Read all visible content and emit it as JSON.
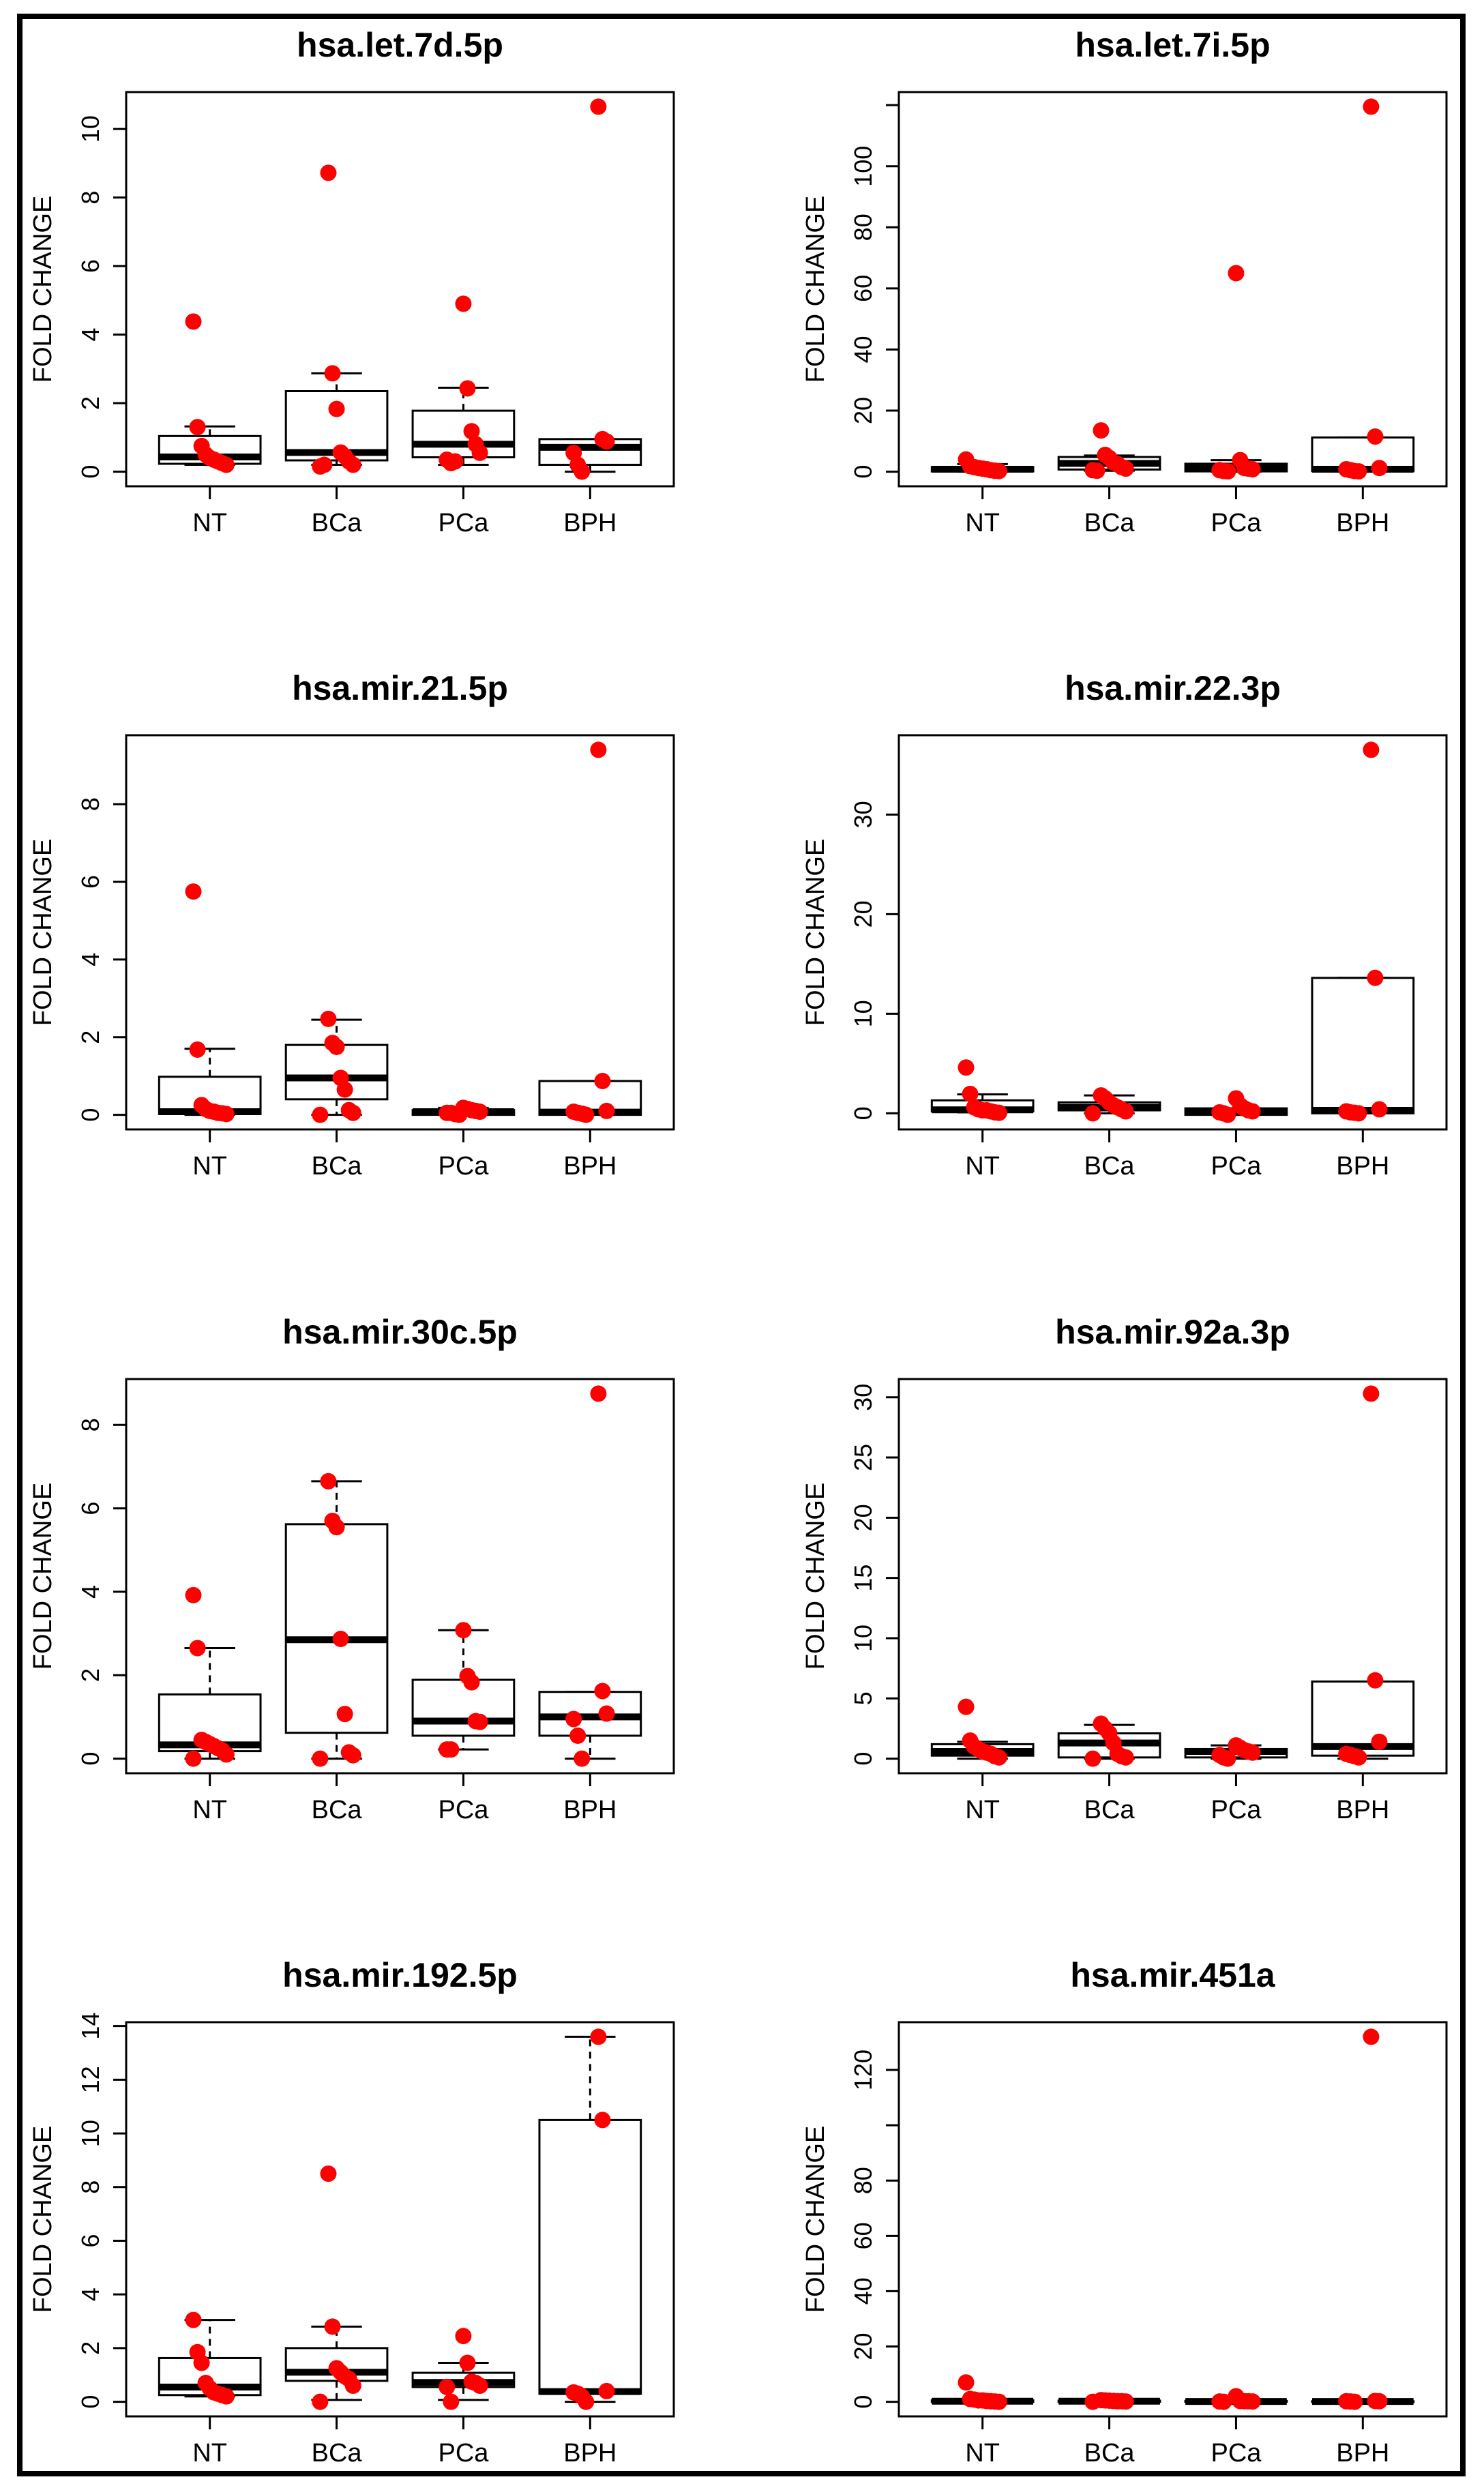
{
  "colors": {
    "points": "#ff0000",
    "lines": "#000000",
    "background": "#ffffff"
  },
  "chart_data": [
    {
      "type": "box",
      "title": "hsa.let.7d.5p",
      "ylabel": "FOLD CHANGE",
      "categories": [
        "NT",
        "BCa",
        "PCa",
        "BPH"
      ],
      "yticks": [
        0,
        2,
        4,
        6,
        8,
        10
      ],
      "ytick_labels": [
        "0",
        "2",
        "4",
        "6",
        "8",
        "10"
      ],
      "groups": [
        {
          "stats": [
            0.2,
            0.23,
            0.43,
            1.04,
            1.32
          ],
          "points": [
            4.38,
            1.3,
            0.75,
            0.5,
            0.4,
            0.35,
            0.3,
            0.25,
            0.2
          ]
        },
        {
          "stats": [
            0.2,
            0.33,
            0.56,
            2.35,
            2.87
          ],
          "points": [
            8.72,
            2.87,
            1.83,
            0.56,
            0.45,
            0.3,
            0.2,
            0.15,
            0.2
          ]
        },
        {
          "stats": [
            0.2,
            0.42,
            0.8,
            1.78,
            2.45
          ],
          "points": [
            4.9,
            2.43,
            1.18,
            0.8,
            0.55,
            0.35,
            0.25,
            0.3
          ]
        },
        {
          "stats": [
            0.0,
            0.2,
            0.71,
            0.95,
            0.95
          ],
          "points": [
            10.65,
            0.95,
            0.88,
            0.55,
            0.2,
            0.0
          ]
        }
      ]
    },
    {
      "type": "box",
      "title": "hsa.let.7i.5p",
      "ylabel": "FOLD CHANGE",
      "categories": [
        "NT",
        "BCa",
        "PCa",
        "BPH"
      ],
      "yticks": [
        0,
        20,
        40,
        60,
        80,
        100,
        120
      ],
      "ytick_labels": [
        "0",
        "20",
        "40",
        "60",
        "80",
        "100",
        ""
      ],
      "groups": [
        {
          "stats": [
            0.0,
            0.1,
            0.8,
            1.5,
            2.5
          ],
          "points": [
            4.0,
            1.8,
            1.5,
            1.2,
            1.0,
            0.8,
            0.5,
            0.3,
            0.2
          ]
        },
        {
          "stats": [
            0.3,
            0.7,
            2.7,
            4.8,
            5.3
          ],
          "points": [
            13.5,
            5.5,
            4.5,
            3.0,
            2.5,
            1.5,
            1.0,
            0.5,
            0.3
          ]
        },
        {
          "stats": [
            0.0,
            0.1,
            1.2,
            2.6,
            3.8
          ],
          "points": [
            65.0,
            3.8,
            1.2,
            1.0,
            0.8,
            0.5,
            0.2,
            0.1
          ]
        },
        {
          "stats": [
            0.0,
            0.2,
            0.8,
            11.2,
            11.2
          ],
          "points": [
            119.5,
            11.5,
            1.2,
            0.8,
            0.5,
            0.2,
            0.1
          ]
        }
      ]
    },
    {
      "type": "box",
      "title": "hsa.mir.21.5p",
      "ylabel": "FOLD CHANGE",
      "categories": [
        "NT",
        "BCa",
        "PCa",
        "BPH"
      ],
      "yticks": [
        0,
        2,
        4,
        6,
        8
      ],
      "ytick_labels": [
        "0",
        "2",
        "4",
        "6",
        "8"
      ],
      "groups": [
        {
          "stats": [
            0.0,
            0.02,
            0.08,
            0.98,
            1.7
          ],
          "points": [
            5.75,
            1.68,
            0.25,
            0.15,
            0.1,
            0.08,
            0.05,
            0.04,
            0.02
          ]
        },
        {
          "stats": [
            0.0,
            0.4,
            0.95,
            1.8,
            2.45
          ],
          "points": [
            2.47,
            1.85,
            1.75,
            0.95,
            0.65,
            0.12,
            0.05,
            0.0
          ]
        },
        {
          "stats": [
            0.0,
            0.0,
            0.08,
            0.12,
            0.18
          ],
          "points": [
            0.18,
            0.15,
            0.12,
            0.1,
            0.08,
            0.05,
            0.05,
            0.02,
            0.0
          ]
        },
        {
          "stats": [
            0.0,
            0.0,
            0.07,
            0.87,
            0.87
          ],
          "points": [
            9.4,
            0.87,
            0.1,
            0.08,
            0.05,
            0.03,
            0.0
          ]
        }
      ]
    },
    {
      "type": "box",
      "title": "hsa.mir.22.3p",
      "ylabel": "FOLD CHANGE",
      "categories": [
        "NT",
        "BCa",
        "PCa",
        "BPH"
      ],
      "yticks": [
        0,
        10,
        20,
        30
      ],
      "ytick_labels": [
        "0",
        "10",
        "20",
        "30"
      ],
      "groups": [
        {
          "stats": [
            0.1,
            0.2,
            0.35,
            1.3,
            1.9
          ],
          "points": [
            4.6,
            1.95,
            0.6,
            0.4,
            0.3,
            0.3,
            0.2,
            0.1,
            0.05
          ]
        },
        {
          "stats": [
            0.0,
            0.3,
            0.6,
            1.1,
            1.8
          ],
          "points": [
            1.8,
            1.5,
            1.1,
            0.8,
            0.6,
            0.4,
            0.2,
            0.0
          ]
        },
        {
          "stats": [
            -0.15,
            -0.15,
            0.2,
            0.5,
            0.5
          ],
          "points": [
            1.5,
            0.8,
            0.5,
            0.3,
            0.2,
            0.1,
            0.0,
            -0.15
          ]
        },
        {
          "stats": [
            0.0,
            0.0,
            0.3,
            13.6,
            13.6
          ],
          "points": [
            36.5,
            13.6,
            0.4,
            0.2,
            0.1,
            0.05,
            0.0
          ]
        }
      ]
    },
    {
      "type": "box",
      "title": "hsa.mir.30c.5p",
      "ylabel": "FOLD CHANGE",
      "categories": [
        "NT",
        "BCa",
        "PCa",
        "BPH"
      ],
      "yticks": [
        0,
        2,
        4,
        6,
        8
      ],
      "ytick_labels": [
        "0",
        "2",
        "4",
        "6",
        "8"
      ],
      "groups": [
        {
          "stats": [
            0.0,
            0.18,
            0.33,
            1.54,
            2.65
          ],
          "points": [
            3.92,
            2.65,
            0.45,
            0.4,
            0.35,
            0.3,
            0.25,
            0.2,
            0.1,
            0.0
          ]
        },
        {
          "stats": [
            0.0,
            0.62,
            2.85,
            5.62,
            6.65
          ],
          "points": [
            6.65,
            5.7,
            5.55,
            2.87,
            1.07,
            0.15,
            0.08,
            0.0
          ]
        },
        {
          "stats": [
            0.22,
            0.55,
            0.9,
            1.89,
            3.08
          ],
          "points": [
            3.08,
            1.98,
            1.83,
            0.9,
            0.88,
            0.22,
            0.22
          ]
        },
        {
          "stats": [
            0.0,
            0.55,
            1.0,
            1.6,
            1.6
          ],
          "points": [
            8.75,
            1.62,
            1.08,
            0.95,
            0.55,
            0.0
          ]
        }
      ]
    },
    {
      "type": "box",
      "title": "hsa.mir.92a.3p",
      "ylabel": "FOLD CHANGE",
      "categories": [
        "NT",
        "BCa",
        "PCa",
        "BPH"
      ],
      "yticks": [
        0,
        5,
        10,
        15,
        20,
        25,
        30
      ],
      "ytick_labels": [
        "0",
        "5",
        "10",
        "15",
        "20",
        "25",
        "30"
      ],
      "groups": [
        {
          "stats": [
            0.0,
            0.25,
            0.6,
            1.2,
            1.4
          ],
          "points": [
            4.3,
            1.5,
            1.0,
            0.8,
            0.6,
            0.5,
            0.4,
            0.2,
            0.1
          ]
        },
        {
          "stats": [
            0.0,
            0.1,
            1.3,
            2.1,
            2.8
          ],
          "points": [
            2.9,
            2.5,
            2.1,
            1.3,
            0.4,
            0.2,
            0.1,
            0.0
          ]
        },
        {
          "stats": [
            0.0,
            0.1,
            0.6,
            0.8,
            1.1
          ],
          "points": [
            1.1,
            0.9,
            0.7,
            0.6,
            0.5,
            0.3,
            0.1,
            0.0
          ]
        },
        {
          "stats": [
            0.0,
            0.25,
            1.0,
            6.4,
            6.4
          ],
          "points": [
            30.3,
            6.5,
            1.4,
            0.4,
            0.3,
            0.2,
            0.1
          ]
        }
      ]
    },
    {
      "type": "box",
      "title": "hsa.mir.192.5p",
      "ylabel": "FOLD CHANGE",
      "categories": [
        "NT",
        "BCa",
        "PCa",
        "BPH"
      ],
      "yticks": [
        0,
        2,
        4,
        6,
        8,
        10,
        12,
        14
      ],
      "ytick_labels": [
        "0",
        "2",
        "4",
        "6",
        "8",
        "10",
        "12",
        "14"
      ],
      "groups": [
        {
          "stats": [
            0.2,
            0.25,
            0.55,
            1.63,
            3.05
          ],
          "points": [
            3.05,
            1.85,
            1.45,
            0.7,
            0.5,
            0.35,
            0.3,
            0.25,
            0.2
          ]
        },
        {
          "stats": [
            0.07,
            0.78,
            1.1,
            2.0,
            2.8
          ],
          "points": [
            8.5,
            2.8,
            1.25,
            1.1,
            0.95,
            0.85,
            0.6,
            0.0
          ]
        },
        {
          "stats": [
            0.07,
            0.55,
            0.72,
            1.08,
            1.45
          ],
          "points": [
            2.45,
            1.45,
            0.75,
            0.7,
            0.6,
            0.55,
            0.0
          ]
        },
        {
          "stats": [
            0.0,
            0.3,
            0.38,
            10.5,
            13.6
          ],
          "points": [
            13.6,
            10.5,
            0.4,
            0.35,
            0.3,
            0.2,
            0.0
          ]
        }
      ]
    },
    {
      "type": "box",
      "title": "hsa.mir.451a",
      "ylabel": "FOLD CHANGE",
      "categories": [
        "NT",
        "BCa",
        "PCa",
        "BPH"
      ],
      "yticks": [
        0,
        20,
        40,
        60,
        80,
        100,
        120
      ],
      "ytick_labels": [
        "0",
        "20",
        "40",
        "60",
        "80",
        "",
        "120"
      ],
      "groups": [
        {
          "stats": [
            0.0,
            0.0,
            0.2,
            0.5,
            1.0
          ],
          "points": [
            7.0,
            1.0,
            0.8,
            0.5,
            0.5,
            0.3,
            0.2,
            0.1,
            0.0
          ]
        },
        {
          "stats": [
            0.0,
            0.0,
            0.2,
            0.4,
            0.6
          ],
          "points": [
            0.6,
            0.5,
            0.4,
            0.3,
            0.2,
            0.2,
            0.1,
            0.0
          ]
        },
        {
          "stats": [
            0.0,
            0.0,
            0.1,
            0.3,
            0.3
          ],
          "points": [
            2.0,
            0.3,
            0.2,
            0.2,
            0.1,
            0.1,
            0.0
          ]
        },
        {
          "stats": [
            0.0,
            0.0,
            0.1,
            0.2,
            0.3
          ],
          "points": [
            132.0,
            0.3,
            0.2,
            0.2,
            0.1,
            0.0
          ]
        }
      ]
    }
  ]
}
